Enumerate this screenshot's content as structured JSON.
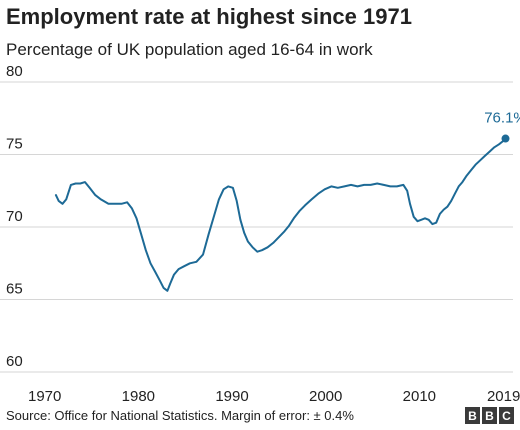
{
  "title": "Employment rate at highest since 1971",
  "subtitle": "Percentage of UK population aged 16-64 in work",
  "source": "Source: Office for National Statistics. Margin of error: ± 0.4%",
  "logo": [
    "B",
    "B",
    "C"
  ],
  "colors": {
    "line": "#1d6a96",
    "grid": "#d6d6d6",
    "text": "#222222",
    "annotation": "#1d6a96"
  },
  "chart_data": {
    "type": "line",
    "title": "Employment rate at highest since 1971",
    "subtitle": "Percentage of UK population aged 16-64 in work",
    "xlabel": "",
    "ylabel": "",
    "xlim": [
      1969.5,
      2020
    ],
    "ylim": [
      60,
      80
    ],
    "yticks": [
      60,
      65,
      70,
      75,
      80
    ],
    "xticks": [
      1970,
      1980,
      1990,
      2000,
      2010,
      2019
    ],
    "grid": true,
    "annotation": {
      "label": "76.1%",
      "x": 2019.2,
      "y": 76.1
    },
    "series": [
      {
        "values": [
          [
            1971.2,
            72.2
          ],
          [
            1971.5,
            71.8
          ],
          [
            1971.9,
            71.6
          ],
          [
            1972.3,
            71.9
          ],
          [
            1972.8,
            72.9
          ],
          [
            1973.3,
            73.0
          ],
          [
            1973.8,
            73.0
          ],
          [
            1974.3,
            73.1
          ],
          [
            1974.8,
            72.7
          ],
          [
            1975.4,
            72.2
          ],
          [
            1976.0,
            71.9
          ],
          [
            1976.8,
            71.6
          ],
          [
            1977.5,
            71.6
          ],
          [
            1978.2,
            71.6
          ],
          [
            1978.8,
            71.7
          ],
          [
            1979.3,
            71.3
          ],
          [
            1979.8,
            70.6
          ],
          [
            1980.3,
            69.5
          ],
          [
            1980.8,
            68.4
          ],
          [
            1981.3,
            67.5
          ],
          [
            1981.8,
            66.9
          ],
          [
            1982.3,
            66.3
          ],
          [
            1982.7,
            65.8
          ],
          [
            1983.1,
            65.6
          ],
          [
            1983.4,
            66.1
          ],
          [
            1983.8,
            66.7
          ],
          [
            1984.3,
            67.1
          ],
          [
            1984.9,
            67.3
          ],
          [
            1985.5,
            67.5
          ],
          [
            1986.2,
            67.6
          ],
          [
            1986.9,
            68.1
          ],
          [
            1987.5,
            69.5
          ],
          [
            1988.1,
            70.8
          ],
          [
            1988.6,
            71.9
          ],
          [
            1989.1,
            72.6
          ],
          [
            1989.6,
            72.8
          ],
          [
            1990.1,
            72.7
          ],
          [
            1990.5,
            71.8
          ],
          [
            1990.9,
            70.5
          ],
          [
            1991.3,
            69.6
          ],
          [
            1991.7,
            69.0
          ],
          [
            1992.2,
            68.6
          ],
          [
            1992.7,
            68.3
          ],
          [
            1993.2,
            68.4
          ],
          [
            1993.8,
            68.6
          ],
          [
            1994.4,
            68.9
          ],
          [
            1995.0,
            69.3
          ],
          [
            1995.6,
            69.7
          ],
          [
            1996.1,
            70.1
          ],
          [
            1996.6,
            70.6
          ],
          [
            1997.2,
            71.1
          ],
          [
            1997.8,
            71.5
          ],
          [
            1998.5,
            71.9
          ],
          [
            1999.2,
            72.3
          ],
          [
            1999.9,
            72.6
          ],
          [
            2000.6,
            72.8
          ],
          [
            2001.3,
            72.7
          ],
          [
            2002.0,
            72.8
          ],
          [
            2002.7,
            72.9
          ],
          [
            2003.4,
            72.8
          ],
          [
            2004.1,
            72.9
          ],
          [
            2004.8,
            72.9
          ],
          [
            2005.5,
            73.0
          ],
          [
            2006.2,
            72.9
          ],
          [
            2006.9,
            72.8
          ],
          [
            2007.6,
            72.8
          ],
          [
            2008.3,
            72.9
          ],
          [
            2008.7,
            72.5
          ],
          [
            2009.0,
            71.6
          ],
          [
            2009.4,
            70.7
          ],
          [
            2009.8,
            70.4
          ],
          [
            2010.2,
            70.5
          ],
          [
            2010.6,
            70.6
          ],
          [
            2011.0,
            70.5
          ],
          [
            2011.4,
            70.2
          ],
          [
            2011.8,
            70.3
          ],
          [
            2012.2,
            70.9
          ],
          [
            2012.6,
            71.2
          ],
          [
            2013.0,
            71.4
          ],
          [
            2013.4,
            71.8
          ],
          [
            2013.8,
            72.3
          ],
          [
            2014.2,
            72.8
          ],
          [
            2014.6,
            73.1
          ],
          [
            2015.0,
            73.5
          ],
          [
            2015.5,
            73.9
          ],
          [
            2016.0,
            74.3
          ],
          [
            2016.5,
            74.6
          ],
          [
            2017.0,
            74.9
          ],
          [
            2017.5,
            75.2
          ],
          [
            2018.0,
            75.5
          ],
          [
            2018.5,
            75.7
          ],
          [
            2018.9,
            75.9
          ],
          [
            2019.2,
            76.1
          ]
        ]
      }
    ]
  }
}
